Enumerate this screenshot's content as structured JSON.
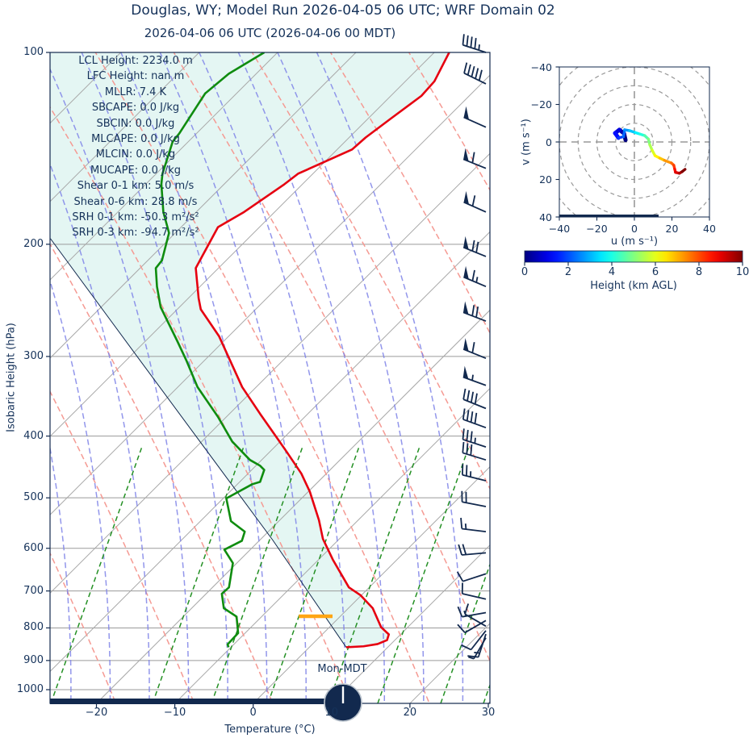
{
  "title": "Douglas, WY; Model Run 2026-04-05 06 UTC; WRF Domain 02",
  "subtitle": "2026-04-06 06 UTC  (2026-04-06 00 MDT)",
  "clock": {
    "label": "Mon-MDT"
  },
  "colors": {
    "navy": "#12294e",
    "text": "#15325a",
    "temperature": "#e60010",
    "dewpoint": "#0f8c0f",
    "parcel": "#12294e",
    "cape_shade": "#e4f6f3",
    "isotherm_gray": "#a8a8a8",
    "pressure_grid_gray": "#9a9a9a",
    "dry_adiabat": "#f59a93",
    "moist_adiabat": "#7f84e8",
    "mixing_ratio": "#249024",
    "lcl_marker": "#ffa513",
    "hodograph_grid": "#999999"
  },
  "stats": [
    {
      "label": "LCL Height:",
      "value": "2234.0 m"
    },
    {
      "label": "LFC Height:",
      "value": "nan m"
    },
    {
      "label": "MLLR:",
      "value": "7.4 K"
    },
    {
      "label": "SBCAPE:",
      "value": "0.0 J/kg"
    },
    {
      "label": "SBCIN:",
      "value": "0.0 J/kg"
    },
    {
      "label": "MLCAPE:",
      "value": "0.0 J/kg"
    },
    {
      "label": "MLCIN:",
      "value": "0.0 J/kg"
    },
    {
      "label": "MUCAPE:",
      "value": "0.0 J/kg"
    },
    {
      "label": "Shear 0-1 km:",
      "value": "5.0 m/s"
    },
    {
      "label": "Shear 0-6 km:",
      "value": "28.8 m/s"
    },
    {
      "label": "SRH 0-1 km:",
      "value": "-50.3 m²/s²"
    },
    {
      "label": "SRH 0-3 km:",
      "value": "-94.7 m²/s²"
    }
  ],
  "skewt": {
    "x_tick_labels": [
      "−20",
      "−10",
      "0",
      "10",
      "20",
      "30"
    ],
    "x_tick_values": [
      -20,
      -10,
      0,
      10,
      20,
      30
    ],
    "p_tick_labels": [
      "100",
      "200",
      "300",
      "400",
      "500",
      "600",
      "700",
      "800",
      "900",
      "1000"
    ],
    "p_tick_values": [
      100,
      200,
      300,
      400,
      500,
      600,
      700,
      800,
      900,
      1000
    ],
    "lcl_marker": {
      "pressure_hpa": 767,
      "t_from_c": -5.3,
      "t_to_c": -1.0
    },
    "wind_barbs": [
      {
        "p": 100,
        "rot": 288,
        "pen": 0,
        "full": 4,
        "half": 1
      },
      {
        "p": 112,
        "rot": 296,
        "pen": 0,
        "full": 5,
        "half": 0
      },
      {
        "p": 131,
        "rot": 294,
        "pen": 1,
        "full": 0,
        "half": 0
      },
      {
        "p": 152,
        "rot": 292,
        "pen": 1,
        "full": 1,
        "half": 0
      },
      {
        "p": 178,
        "rot": 294,
        "pen": 1,
        "full": 1,
        "half": 0
      },
      {
        "p": 209,
        "rot": 292,
        "pen": 1,
        "full": 2,
        "half": 0
      },
      {
        "p": 233,
        "rot": 293,
        "pen": 1,
        "full": 1,
        "half": 1
      },
      {
        "p": 264,
        "rot": 291,
        "pen": 1,
        "full": 2,
        "half": 0
      },
      {
        "p": 302,
        "rot": 292,
        "pen": 1,
        "full": 1,
        "half": 0
      },
      {
        "p": 333,
        "rot": 290,
        "pen": 1,
        "full": 0,
        "half": 1
      },
      {
        "p": 362,
        "rot": 292,
        "pen": 0,
        "full": 4,
        "half": 0
      },
      {
        "p": 388,
        "rot": 290,
        "pen": 0,
        "full": 4,
        "half": 0
      },
      {
        "p": 416,
        "rot": 288,
        "pen": 0,
        "full": 3,
        "half": 1
      },
      {
        "p": 436,
        "rot": 287,
        "pen": 0,
        "full": 3,
        "half": 0
      },
      {
        "p": 470,
        "rot": 284,
        "pen": 0,
        "full": 2,
        "half": 1
      },
      {
        "p": 516,
        "rot": 281,
        "pen": 0,
        "full": 2,
        "half": 0
      },
      {
        "p": 565,
        "rot": 277,
        "pen": 0,
        "full": 1,
        "half": 1
      },
      {
        "p": 610,
        "rot": 265,
        "pen": 0,
        "full": 2,
        "half": 0
      },
      {
        "p": 658,
        "rot": 252,
        "pen": 0,
        "full": 1,
        "half": 0
      },
      {
        "p": 721,
        "rot": 283,
        "pen": 0,
        "full": 1,
        "half": 0
      },
      {
        "p": 757,
        "rot": 260,
        "pen": 0,
        "full": 1,
        "half": 1
      },
      {
        "p": 779,
        "rot": 240,
        "pen": 0,
        "full": 1,
        "half": 0
      },
      {
        "p": 795,
        "rot": 300,
        "pen": 0,
        "full": 1,
        "half": 0
      },
      {
        "p": 808,
        "rot": 218,
        "pen": 0,
        "full": 1,
        "half": 0
      },
      {
        "p": 818,
        "rot": 198,
        "pen": 0,
        "full": 1,
        "half": 1
      },
      {
        "p": 829,
        "rot": 210,
        "pen": 0,
        "full": 0,
        "half": 1
      }
    ]
  },
  "chart_data": {
    "type": "line",
    "charts": [
      {
        "name": "skewt_sounding",
        "xlabel": "Temperature (°C)",
        "ylabel": "Isobaric Height (hPa)",
        "x_range_c": [
          -25.9,
          36.4
        ],
        "pressure_range_hpa": [
          100,
          1051
        ],
        "grid": true,
        "series": [
          {
            "name": "temperature",
            "color": "#e60010",
            "points_hpa_c": [
              [
                100,
                -58.1
              ],
              [
                111,
                -56.3
              ],
              [
                117,
                -56.1
              ],
              [
                127,
                -57.1
              ],
              [
                136,
                -57.9
              ],
              [
                142,
                -58.1
              ],
              [
                155,
                -61.9
              ],
              [
                161,
                -62.3
              ],
              [
                178,
                -63.9
              ],
              [
                188,
                -65.3
              ],
              [
                218,
                -62.9
              ],
              [
                243,
                -58.7
              ],
              [
                253,
                -57.0
              ],
              [
                279,
                -51.2
              ],
              [
                335,
                -41.8
              ],
              [
                369,
                -36.1
              ],
              [
                403,
                -30.8
              ],
              [
                423,
                -27.9
              ],
              [
                458,
                -23.2
              ],
              [
                489,
                -19.8
              ],
              [
                542,
                -15.0
              ],
              [
                580,
                -12.1
              ],
              [
                625,
                -8.2
              ],
              [
                691,
                -2.6
              ],
              [
                711,
                -0.1
              ],
              [
                745,
                3.1
              ],
              [
                798,
                6.6
              ],
              [
                819,
                8.5
              ],
              [
                836,
                9.0
              ],
              [
                848,
                8.3
              ],
              [
                855,
                6.8
              ],
              [
                858,
                4.7
              ]
            ]
          },
          {
            "name": "dewpoint",
            "color": "#0f8c0f",
            "points_hpa_c": [
              [
                100,
                -81.7
              ],
              [
                108,
                -83.5
              ],
              [
                116,
                -84.0
              ],
              [
                134,
                -82.2
              ],
              [
                138,
                -82.0
              ],
              [
                155,
                -79.2
              ],
              [
                161,
                -78.0
              ],
              [
                178,
                -74.2
              ],
              [
                192,
                -70.8
              ],
              [
                212,
                -68.2
              ],
              [
                218,
                -68.0
              ],
              [
                233,
                -65.5
              ],
              [
                251,
                -62.4
              ],
              [
                284,
                -55.9
              ],
              [
                305,
                -52.2
              ],
              [
                335,
                -47.5
              ],
              [
                373,
                -41.1
              ],
              [
                408,
                -36.1
              ],
              [
                436,
                -31.5
              ],
              [
                445,
                -29.5
              ],
              [
                452,
                -28.4
              ],
              [
                472,
                -27.4
              ],
              [
                476,
                -28.1
              ],
              [
                501,
                -29.6
              ],
              [
                544,
                -26.1
              ],
              [
                565,
                -23.0
              ],
              [
                584,
                -22.2
              ],
              [
                603,
                -23.3
              ],
              [
                633,
                -20.5
              ],
              [
                691,
                -17.9
              ],
              [
                707,
                -18.0
              ],
              [
                745,
                -15.9
              ],
              [
                768,
                -13.2
              ],
              [
                815,
                -10.9
              ],
              [
                849,
                -10.8
              ],
              [
                858,
                -10.3
              ]
            ]
          },
          {
            "name": "surface_parcel",
            "color": "#12294e",
            "points_hpa_c": [
              [
                858,
                4.7
              ],
              [
                583,
                -18.3
              ],
              [
                300,
                -59.1
              ],
              [
                196,
                -85.2
              ]
            ]
          }
        ]
      },
      {
        "name": "hodograph",
        "xlabel": "u (m s⁻¹)",
        "ylabel": "v (m s⁻¹)",
        "xlim": [
          -40,
          40
        ],
        "ylim": [
          -40,
          40
        ],
        "tick_labels": [
          "−40",
          "−20",
          "0",
          "20",
          "40"
        ],
        "tick_values": [
          -40,
          -20,
          0,
          20,
          40
        ],
        "range_rings": [
          10,
          20,
          30,
          40,
          50
        ],
        "series": [
          {
            "name": "wind_trace_colored_by_height",
            "colormap": "jet",
            "height_km_range": [
              0,
              10
            ],
            "points_u_v": [
              [
                -4.7,
                1.0
              ],
              [
                -5.5,
                4.5
              ],
              [
                -8.0,
                6.5
              ],
              [
                -10.3,
                4.7
              ],
              [
                -8.5,
                2.2
              ],
              [
                -5.8,
                2.8
              ],
              [
                -5.2,
                6.5
              ],
              [
                -2.5,
                6.0
              ],
              [
                0.5,
                5.0
              ],
              [
                3.0,
                4.2
              ],
              [
                5.5,
                3.4
              ],
              [
                7.5,
                1.5
              ],
              [
                8.2,
                -1.5
              ],
              [
                9.5,
                -4.5
              ],
              [
                11.0,
                -7.3
              ],
              [
                13.5,
                -8.6
              ],
              [
                16.0,
                -9.8
              ],
              [
                19.7,
                -11.2
              ],
              [
                21.0,
                -12.4
              ],
              [
                21.5,
                -14.5
              ],
              [
                21.9,
                -16.2
              ],
              [
                24.0,
                -16.7
              ],
              [
                25.5,
                -15.8
              ],
              [
                27.0,
                -14.6
              ]
            ]
          }
        ]
      }
    ]
  },
  "colorbar": {
    "label": "Height (km AGL)",
    "colormap": "jet",
    "min": 0,
    "max": 10,
    "tick_labels": [
      "0",
      "2",
      "4",
      "6",
      "8",
      "10"
    ],
    "tick_values": [
      0,
      2,
      4,
      6,
      8,
      10
    ]
  }
}
